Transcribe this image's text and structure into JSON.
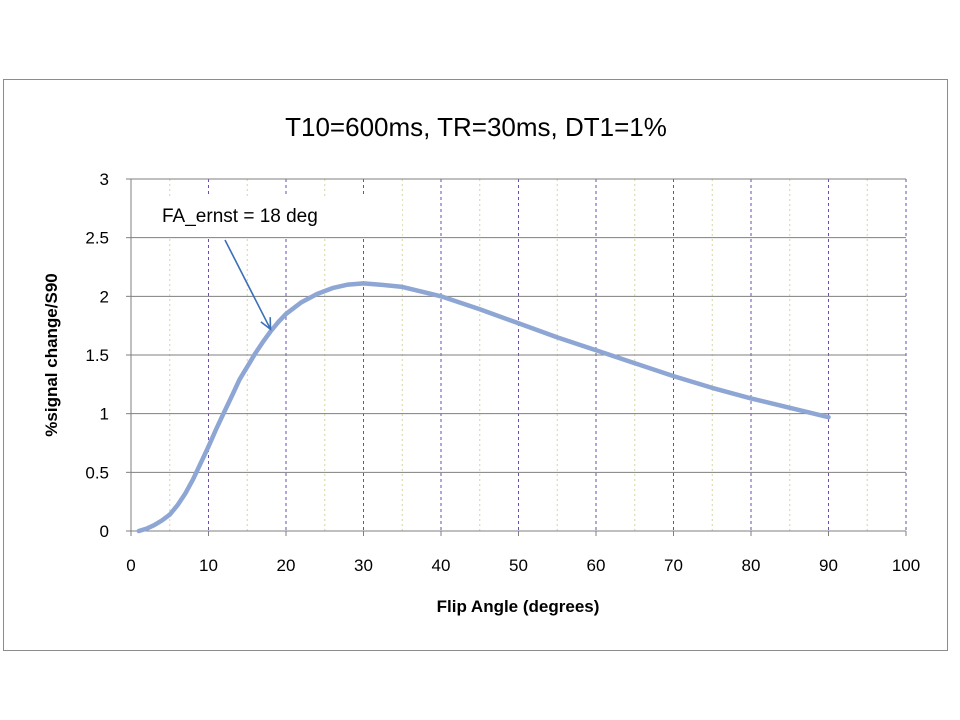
{
  "chart_data": {
    "type": "line",
    "title": "T10=600ms, TR=30ms, DT1=1%",
    "xlabel": "Flip Angle (degrees)",
    "ylabel": "%signal change/S90",
    "xlim": [
      0,
      100
    ],
    "ylim": [
      0,
      3
    ],
    "xticks": [
      "0",
      "10",
      "20",
      "30",
      "40",
      "50",
      "60",
      "70",
      "80",
      "90",
      "100"
    ],
    "yticks": [
      "0",
      "0.5",
      "1",
      "1.5",
      "2",
      "2.5",
      "3"
    ],
    "grid": true,
    "line_color": "#8ea6d4",
    "series": [
      {
        "x": [
          1,
          2,
          3,
          4,
          5,
          6,
          7,
          8,
          9,
          10,
          11,
          12,
          13,
          14,
          15,
          16,
          17,
          18,
          19,
          20,
          22,
          24,
          26,
          28,
          30,
          32,
          35,
          40,
          45,
          50,
          55,
          60,
          65,
          70,
          75,
          80,
          85,
          90
        ],
        "values": [
          0.0,
          0.02,
          0.05,
          0.09,
          0.14,
          0.22,
          0.32,
          0.44,
          0.58,
          0.72,
          0.87,
          1.01,
          1.15,
          1.29,
          1.4,
          1.51,
          1.61,
          1.7,
          1.78,
          1.85,
          1.95,
          2.02,
          2.07,
          2.1,
          2.11,
          2.1,
          2.08,
          2.0,
          1.89,
          1.77,
          1.65,
          1.54,
          1.43,
          1.32,
          1.22,
          1.13,
          1.05,
          0.97
        ]
      }
    ],
    "annotation": {
      "text": "FA_ernst = 18 deg",
      "arrow_to": [
        18,
        1.72
      ]
    }
  }
}
